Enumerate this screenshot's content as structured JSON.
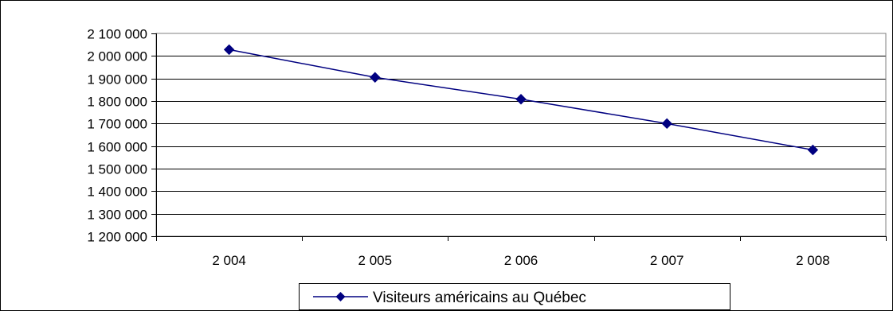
{
  "chart_data": {
    "type": "line",
    "title": "",
    "xlabel": "",
    "ylabel": "",
    "categories": [
      "2 004",
      "2 005",
      "2 006",
      "2 007",
      "2 008"
    ],
    "series": [
      {
        "name": "Visiteurs américains au Québec",
        "values": [
          2028000,
          1905000,
          1808000,
          1700000,
          1583000
        ],
        "color": "#000080",
        "marker": "diamond"
      }
    ],
    "ylim": [
      1200000,
      2100000
    ],
    "yticks": [
      {
        "value": 1200000,
        "label": "1 200 000"
      },
      {
        "value": 1300000,
        "label": "1 300 000"
      },
      {
        "value": 1400000,
        "label": "1 400 000"
      },
      {
        "value": 1500000,
        "label": "1 500 000"
      },
      {
        "value": 1600000,
        "label": "1 600 000"
      },
      {
        "value": 1700000,
        "label": "1 700 000"
      },
      {
        "value": 1800000,
        "label": "1 800 000"
      },
      {
        "value": 1900000,
        "label": "1 900 000"
      },
      {
        "value": 2000000,
        "label": "2 000 000"
      },
      {
        "value": 2100000,
        "label": "2 100 000"
      }
    ],
    "grid": "horizontal",
    "legend_position": "bottom"
  }
}
